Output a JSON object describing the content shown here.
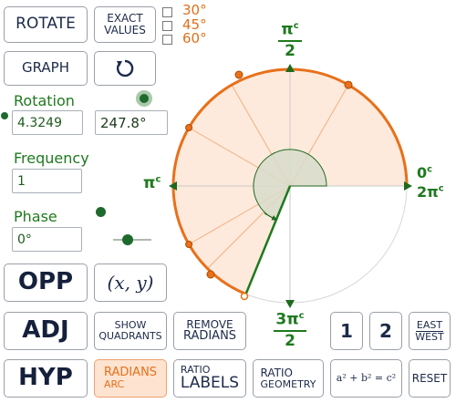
{
  "buttons": {
    "rotate": "ROTATE",
    "exact_values_1": "EXACT",
    "exact_values_2": "VALUES",
    "graph": "GRAPH",
    "opp": "OPP",
    "xy": "(x, y)",
    "adj": "ADJ",
    "show_quadrants_1": "SHOW",
    "show_quadrants_2": "QUADRANTS",
    "remove_radians_1": "REMOVE",
    "remove_radians_2": "RADIANS",
    "one": "1",
    "two": "2",
    "east_west_1": "EAST",
    "east_west_2": "WEST",
    "hyp": "HYP",
    "radians_arc_1": "RADIANS",
    "radians_arc_2": "ARC",
    "ratio_labels_1": "RATIO",
    "ratio_labels_2": "LABELS",
    "ratio_geometry_1": "RATIO",
    "ratio_geometry_2": "GEOMETRY",
    "pythag": "a² + b² = c²",
    "reset": "RESET"
  },
  "checkboxes": [
    "30°",
    "45°",
    "60°"
  ],
  "rotation": {
    "label": "Rotation",
    "radians": "4.3249",
    "degrees": "247.8°"
  },
  "frequency": {
    "label": "Frequency",
    "value": "1"
  },
  "phase": {
    "label": "Phase",
    "value": "0°"
  },
  "circle_labels": {
    "top_num": "π",
    "top_sup": "c",
    "top_den": "2",
    "left": "π",
    "left_sup": "c",
    "right_top": "0",
    "right_top_sup": "c",
    "right_bottom": "2π",
    "right_bottom_sup": "c",
    "bottom_num": "3π",
    "bottom_sup": "c",
    "bottom_den": "2"
  },
  "colors": {
    "accent_orange": "#e8701a",
    "sector_fill": "#fde3d0",
    "green": "#1e7a1e",
    "navy": "#1c2a4a"
  },
  "icons": {
    "refresh": "refresh-icon"
  }
}
